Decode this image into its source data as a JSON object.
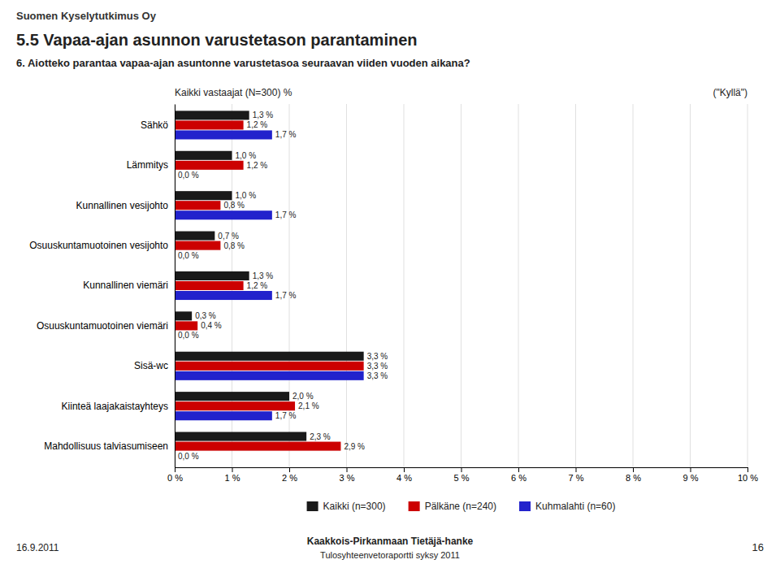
{
  "chart_data": {
    "type": "bar",
    "orientation": "horizontal",
    "header": "Suomen Kyselytutkimus Oy",
    "title": "5.5 Vapaa-ajan asunnon varustetason parantaminen",
    "subtitle": "6. Aiotteko parantaa vapaa-ajan asuntonne varustetasoa seuraavan viiden vuoden aikana?",
    "annotations": [
      "Kaikki vastaajat (N=300) %",
      "(\"Kyllä\")"
    ],
    "footer": [
      "16.9.2011",
      "Kaakkois-Pirkanmaan Tietäjä-hanke",
      "Tulosyhteenvetoraportti syksy 2011",
      "16"
    ],
    "categories": [
      "Sähkö",
      "Lämmitys",
      "Kunnallinen vesijohto",
      "Osuuskuntamuotoinen vesijohto",
      "Kunnallinen viemäri",
      "Osuuskuntamuotoinen viemäri",
      "Sisä-wc",
      "Kiinteä laajakaistayhteys",
      "Mahdollisuus talviasumiseen"
    ],
    "series": [
      {
        "name": "Kaikki (n=300)",
        "color": "#1a1a1a",
        "values": [
          1.3,
          1.0,
          1.0,
          0.7,
          1.3,
          0.3,
          3.3,
          2.0,
          2.3
        ],
        "value_labels": [
          "1,3 %",
          "1,0 %",
          "1,0 %",
          "0,7 %",
          "1,3 %",
          "0,3 %",
          "3,3 %",
          "2,0 %",
          "2,3 %"
        ]
      },
      {
        "name": "Pälkäne (n=240)",
        "color": "#cc0000",
        "values": [
          1.2,
          1.2,
          0.8,
          0.8,
          1.2,
          0.4,
          3.3,
          2.1,
          2.9
        ],
        "value_labels": [
          "1,2 %",
          "1,2 %",
          "0,8 %",
          "0,8 %",
          "1,2 %",
          "0,4 %",
          "3,3 %",
          "2,1 %",
          "2,9 %"
        ]
      },
      {
        "name": "Kuhmalahti (n=60)",
        "color": "#2222cc",
        "values": [
          1.7,
          0.0,
          1.7,
          0.0,
          1.7,
          0.0,
          3.3,
          1.7,
          0.0
        ],
        "value_labels": [
          "1,7 %",
          "0,0 %",
          "1,7 %",
          "0,0 %",
          "1,7 %",
          "0,0 %",
          "3,3 %",
          "1,7 %",
          "0,0 %"
        ]
      }
    ],
    "xlim": [
      0,
      10
    ],
    "xticks": [
      {
        "value": 0,
        "label": "0 %"
      },
      {
        "value": 1,
        "label": "1 %"
      },
      {
        "value": 2,
        "label": "2 %"
      },
      {
        "value": 3,
        "label": "3 %"
      },
      {
        "value": 4,
        "label": "4 %"
      },
      {
        "value": 5,
        "label": "5 %"
      },
      {
        "value": 6,
        "label": "6 %"
      },
      {
        "value": 7,
        "label": "7 %"
      },
      {
        "value": 8,
        "label": "8 %"
      },
      {
        "value": 9,
        "label": "9 %"
      },
      {
        "value": 10,
        "label": "10 %"
      }
    ],
    "grid": true,
    "legend": "bottom",
    "data_labels": true
  }
}
